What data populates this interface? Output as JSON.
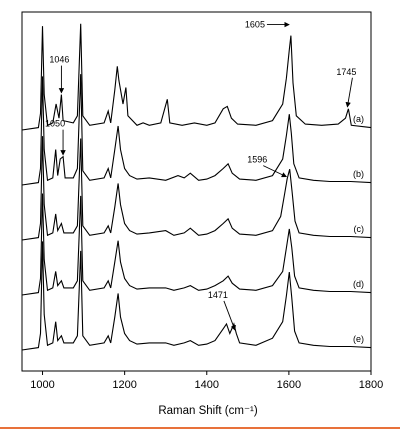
{
  "chart_data": {
    "type": "line",
    "xlabel": "Raman Shift (cm⁻¹)",
    "xlim": [
      950,
      1800
    ],
    "xticks": [
      1000,
      1200,
      1400,
      1600,
      1800
    ],
    "xtick_labels": [
      "1000",
      "1200",
      "1400",
      "1600",
      "1800"
    ],
    "y_ticks_labeled": false,
    "grid": false,
    "series": [
      {
        "name": "(a)",
        "baseline_rel": 0.0,
        "points": [
          [
            950,
            0
          ],
          [
            990,
            2
          ],
          [
            995,
            14
          ],
          [
            1000,
            88
          ],
          [
            1004,
            30
          ],
          [
            1012,
            4
          ],
          [
            1025,
            6
          ],
          [
            1033,
            22
          ],
          [
            1040,
            10
          ],
          [
            1046,
            30
          ],
          [
            1050,
            8
          ],
          [
            1075,
            6
          ],
          [
            1085,
            12
          ],
          [
            1093,
            90
          ],
          [
            1098,
            12
          ],
          [
            1115,
            4
          ],
          [
            1150,
            6
          ],
          [
            1160,
            16
          ],
          [
            1166,
            6
          ],
          [
            1176,
            34
          ],
          [
            1182,
            54
          ],
          [
            1186,
            42
          ],
          [
            1196,
            22
          ],
          [
            1203,
            36
          ],
          [
            1208,
            12
          ],
          [
            1230,
            4
          ],
          [
            1245,
            6
          ],
          [
            1260,
            4
          ],
          [
            1288,
            6
          ],
          [
            1304,
            26
          ],
          [
            1310,
            6
          ],
          [
            1340,
            4
          ],
          [
            1370,
            6
          ],
          [
            1400,
            4
          ],
          [
            1420,
            6
          ],
          [
            1440,
            18
          ],
          [
            1450,
            20
          ],
          [
            1460,
            10
          ],
          [
            1475,
            5
          ],
          [
            1520,
            4
          ],
          [
            1560,
            8
          ],
          [
            1585,
            22
          ],
          [
            1594,
            44
          ],
          [
            1601,
            68
          ],
          [
            1605,
            80
          ],
          [
            1610,
            40
          ],
          [
            1618,
            12
          ],
          [
            1640,
            5
          ],
          [
            1680,
            4
          ],
          [
            1720,
            5
          ],
          [
            1738,
            10
          ],
          [
            1745,
            18
          ],
          [
            1752,
            4
          ],
          [
            1800,
            2
          ]
        ]
      },
      {
        "name": "(b)",
        "baseline_rel": 0.0,
        "points": [
          [
            950,
            0
          ],
          [
            990,
            2
          ],
          [
            995,
            14
          ],
          [
            1000,
            92
          ],
          [
            1004,
            30
          ],
          [
            1012,
            4
          ],
          [
            1025,
            6
          ],
          [
            1032,
            30
          ],
          [
            1037,
            8
          ],
          [
            1043,
            22
          ],
          [
            1050,
            24
          ],
          [
            1055,
            6
          ],
          [
            1075,
            6
          ],
          [
            1085,
            14
          ],
          [
            1093,
            94
          ],
          [
            1098,
            12
          ],
          [
            1115,
            4
          ],
          [
            1150,
            6
          ],
          [
            1160,
            14
          ],
          [
            1166,
            6
          ],
          [
            1176,
            30
          ],
          [
            1184,
            50
          ],
          [
            1190,
            30
          ],
          [
            1200,
            14
          ],
          [
            1212,
            8
          ],
          [
            1230,
            5
          ],
          [
            1260,
            6
          ],
          [
            1300,
            4
          ],
          [
            1330,
            8
          ],
          [
            1345,
            6
          ],
          [
            1360,
            10
          ],
          [
            1380,
            4
          ],
          [
            1400,
            5
          ],
          [
            1420,
            8
          ],
          [
            1440,
            14
          ],
          [
            1452,
            18
          ],
          [
            1462,
            10
          ],
          [
            1480,
            5
          ],
          [
            1520,
            4
          ],
          [
            1560,
            8
          ],
          [
            1585,
            22
          ],
          [
            1594,
            42
          ],
          [
            1601,
            60
          ],
          [
            1606,
            44
          ],
          [
            1612,
            18
          ],
          [
            1625,
            6
          ],
          [
            1660,
            4
          ],
          [
            1700,
            3
          ],
          [
            1750,
            3
          ],
          [
            1800,
            2
          ]
        ]
      },
      {
        "name": "(c)",
        "baseline_rel": 0.0,
        "points": [
          [
            950,
            0
          ],
          [
            990,
            2
          ],
          [
            995,
            14
          ],
          [
            1000,
            88
          ],
          [
            1004,
            30
          ],
          [
            1012,
            4
          ],
          [
            1025,
            6
          ],
          [
            1032,
            22
          ],
          [
            1037,
            8
          ],
          [
            1046,
            14
          ],
          [
            1052,
            6
          ],
          [
            1075,
            6
          ],
          [
            1085,
            12
          ],
          [
            1093,
            86
          ],
          [
            1098,
            12
          ],
          [
            1115,
            4
          ],
          [
            1150,
            6
          ],
          [
            1160,
            12
          ],
          [
            1166,
            6
          ],
          [
            1176,
            28
          ],
          [
            1184,
            48
          ],
          [
            1190,
            30
          ],
          [
            1200,
            14
          ],
          [
            1212,
            8
          ],
          [
            1230,
            5
          ],
          [
            1260,
            6
          ],
          [
            1300,
            8
          ],
          [
            1320,
            4
          ],
          [
            1345,
            6
          ],
          [
            1360,
            10
          ],
          [
            1380,
            4
          ],
          [
            1400,
            5
          ],
          [
            1420,
            8
          ],
          [
            1440,
            14
          ],
          [
            1452,
            18
          ],
          [
            1462,
            10
          ],
          [
            1480,
            5
          ],
          [
            1520,
            4
          ],
          [
            1560,
            8
          ],
          [
            1580,
            20
          ],
          [
            1590,
            40
          ],
          [
            1596,
            52
          ],
          [
            1602,
            60
          ],
          [
            1608,
            40
          ],
          [
            1615,
            16
          ],
          [
            1625,
            6
          ],
          [
            1660,
            4
          ],
          [
            1700,
            3
          ],
          [
            1750,
            3
          ],
          [
            1800,
            2
          ]
        ]
      },
      {
        "name": "(d)",
        "baseline_rel": 0.0,
        "points": [
          [
            950,
            0
          ],
          [
            990,
            2
          ],
          [
            995,
            14
          ],
          [
            1000,
            86
          ],
          [
            1004,
            30
          ],
          [
            1012,
            4
          ],
          [
            1025,
            6
          ],
          [
            1032,
            20
          ],
          [
            1037,
            8
          ],
          [
            1046,
            12
          ],
          [
            1052,
            6
          ],
          [
            1075,
            6
          ],
          [
            1085,
            12
          ],
          [
            1093,
            84
          ],
          [
            1098,
            12
          ],
          [
            1115,
            4
          ],
          [
            1150,
            6
          ],
          [
            1160,
            12
          ],
          [
            1166,
            6
          ],
          [
            1176,
            28
          ],
          [
            1184,
            46
          ],
          [
            1190,
            28
          ],
          [
            1200,
            14
          ],
          [
            1212,
            8
          ],
          [
            1230,
            5
          ],
          [
            1260,
            6
          ],
          [
            1300,
            6
          ],
          [
            1320,
            4
          ],
          [
            1345,
            6
          ],
          [
            1360,
            8
          ],
          [
            1380,
            4
          ],
          [
            1400,
            5
          ],
          [
            1420,
            8
          ],
          [
            1440,
            12
          ],
          [
            1452,
            16
          ],
          [
            1462,
            10
          ],
          [
            1480,
            5
          ],
          [
            1520,
            4
          ],
          [
            1560,
            8
          ],
          [
            1585,
            20
          ],
          [
            1594,
            40
          ],
          [
            1601,
            56
          ],
          [
            1607,
            40
          ],
          [
            1614,
            16
          ],
          [
            1625,
            6
          ],
          [
            1660,
            4
          ],
          [
            1700,
            3
          ],
          [
            1750,
            3
          ],
          [
            1800,
            2
          ]
        ]
      },
      {
        "name": "(e)",
        "baseline_rel": 0.0,
        "points": [
          [
            950,
            0
          ],
          [
            990,
            2
          ],
          [
            995,
            14
          ],
          [
            1000,
            92
          ],
          [
            1004,
            30
          ],
          [
            1012,
            4
          ],
          [
            1025,
            6
          ],
          [
            1032,
            24
          ],
          [
            1037,
            8
          ],
          [
            1046,
            12
          ],
          [
            1052,
            6
          ],
          [
            1075,
            6
          ],
          [
            1085,
            12
          ],
          [
            1093,
            84
          ],
          [
            1098,
            12
          ],
          [
            1115,
            4
          ],
          [
            1150,
            6
          ],
          [
            1160,
            12
          ],
          [
            1166,
            6
          ],
          [
            1176,
            28
          ],
          [
            1184,
            48
          ],
          [
            1190,
            28
          ],
          [
            1200,
            14
          ],
          [
            1212,
            8
          ],
          [
            1230,
            5
          ],
          [
            1260,
            6
          ],
          [
            1300,
            6
          ],
          [
            1320,
            4
          ],
          [
            1345,
            6
          ],
          [
            1360,
            8
          ],
          [
            1380,
            4
          ],
          [
            1400,
            5
          ],
          [
            1420,
            8
          ],
          [
            1440,
            18
          ],
          [
            1448,
            22
          ],
          [
            1456,
            14
          ],
          [
            1466,
            22
          ],
          [
            1472,
            14
          ],
          [
            1480,
            6
          ],
          [
            1520,
            4
          ],
          [
            1560,
            10
          ],
          [
            1585,
            24
          ],
          [
            1594,
            46
          ],
          [
            1601,
            66
          ],
          [
            1607,
            44
          ],
          [
            1614,
            16
          ],
          [
            1625,
            6
          ],
          [
            1660,
            4
          ],
          [
            1700,
            3
          ],
          [
            1750,
            3
          ],
          [
            1800,
            2
          ]
        ]
      }
    ],
    "annotations": [
      {
        "text": "1605",
        "series": "(a)",
        "x": 1605
      },
      {
        "text": "1046",
        "series": "(a)",
        "x": 1046
      },
      {
        "text": "1745",
        "series": "(a)",
        "x": 1745
      },
      {
        "text": "1050",
        "series": "(b)",
        "x": 1050
      },
      {
        "text": "1596",
        "series": "(c)",
        "x": 1596
      },
      {
        "text": "1471",
        "series": "(e)",
        "x": 1471
      }
    ]
  },
  "colors": {
    "line": "#000000",
    "background": "#ffffff",
    "footer_line": "#e8713a"
  }
}
